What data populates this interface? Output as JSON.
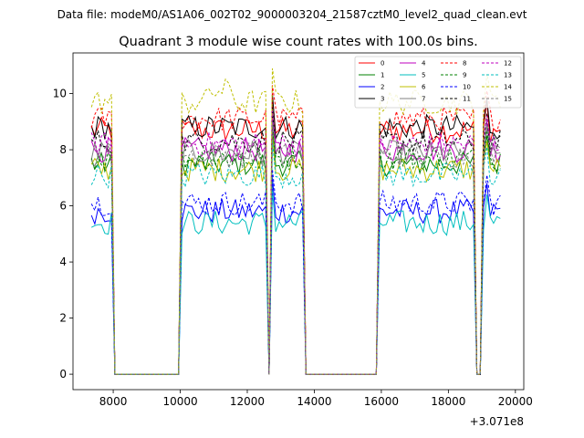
{
  "chart_data": {
    "type": "line",
    "suptitle": "Data file: modeM0/AS1A06_002T02_9000003204_21587cztM0_level2_quad_clean.evt",
    "title": "Quadrant 3 module wise count rates with 100.0s bins.",
    "xlabel": "",
    "ylabel": "",
    "x_offset_label": "+3.071e8",
    "xlim": [
      6800,
      20250
    ],
    "ylim": [
      -0.55,
      11.45
    ],
    "xticks": [
      8000,
      10000,
      12000,
      14000,
      16000,
      18000,
      20000
    ],
    "yticks": [
      0,
      2,
      4,
      6,
      8,
      10
    ],
    "xtick_labels": [
      "8000",
      "10000",
      "12000",
      "14000",
      "16000",
      "18000",
      "20000"
    ],
    "ytick_labels": [
      "0",
      "2",
      "4",
      "6",
      "8",
      "10"
    ],
    "legend_position": "top-right",
    "time_segments": [
      [
        7350,
        7950
      ],
      [
        10000,
        12550
      ],
      [
        12750,
        13700
      ],
      [
        15900,
        18750
      ],
      [
        19050,
        19550
      ]
    ],
    "gaps": [
      [
        8000,
        9950
      ],
      [
        13800,
        15750
      ],
      [
        18800,
        18950
      ]
    ],
    "series": [
      {
        "name": "0",
        "color": "#ff0000",
        "dash": "solid",
        "level": 8.7
      },
      {
        "name": "1",
        "color": "#008000",
        "dash": "solid",
        "level": 7.5
      },
      {
        "name": "2",
        "color": "#0000ff",
        "dash": "solid",
        "level": 5.8
      },
      {
        "name": "3",
        "color": "#000000",
        "dash": "solid",
        "level": 8.8
      },
      {
        "name": "4",
        "color": "#bf00bf",
        "dash": "solid",
        "level": 8.0
      },
      {
        "name": "5",
        "color": "#00bfbf",
        "dash": "solid",
        "level": 5.4
      },
      {
        "name": "6",
        "color": "#bfbf00",
        "dash": "solid",
        "level": 7.3
      },
      {
        "name": "7",
        "color": "#808080",
        "dash": "solid",
        "level": 7.9
      },
      {
        "name": "8",
        "color": "#ff0000",
        "dash": "dashed",
        "level": 9.1
      },
      {
        "name": "9",
        "color": "#008000",
        "dash": "dashed",
        "level": 7.7
      },
      {
        "name": "10",
        "color": "#0000ff",
        "dash": "dashed",
        "level": 6.1
      },
      {
        "name": "11",
        "color": "#000000",
        "dash": "dashed",
        "level": 8.3
      },
      {
        "name": "12",
        "color": "#bf00bf",
        "dash": "dashed",
        "level": 8.2
      },
      {
        "name": "13",
        "color": "#00bfbf",
        "dash": "dashed",
        "level": 7.1
      },
      {
        "name": "14",
        "color": "#bfbf00",
        "dash": "dashed",
        "level": 9.7
      },
      {
        "name": "15",
        "color": "#808080",
        "dash": "dashed",
        "level": 7.8
      }
    ]
  }
}
